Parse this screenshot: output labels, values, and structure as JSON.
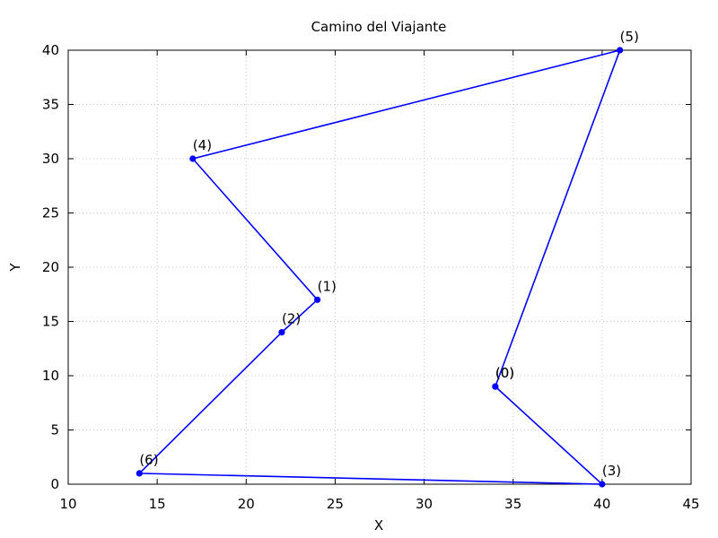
{
  "chart_data": {
    "type": "line",
    "title": "Camino del Viajante",
    "xlabel": "X",
    "ylabel": "Y",
    "xlim": [
      10,
      45
    ],
    "ylim": [
      0,
      40
    ],
    "x_ticks": [
      10,
      15,
      20,
      25,
      30,
      35,
      40,
      45
    ],
    "y_ticks": [
      0,
      5,
      10,
      15,
      20,
      25,
      30,
      35,
      40
    ],
    "grid": true,
    "series": [
      {
        "color": "#0000ff",
        "points": [
          {
            "label": "(0)",
            "x": 34,
            "y": 9
          },
          {
            "label": "(3)",
            "x": 40,
            "y": 0
          },
          {
            "label": "(6)",
            "x": 14,
            "y": 1
          },
          {
            "label": "(2)",
            "x": 22,
            "y": 14
          },
          {
            "label": "(1)",
            "x": 24,
            "y": 17
          },
          {
            "label": "(4)",
            "x": 17,
            "y": 30
          },
          {
            "label": "(5)",
            "x": 41,
            "y": 40
          },
          {
            "label": "(0)",
            "x": 34,
            "y": 9
          }
        ]
      }
    ]
  }
}
